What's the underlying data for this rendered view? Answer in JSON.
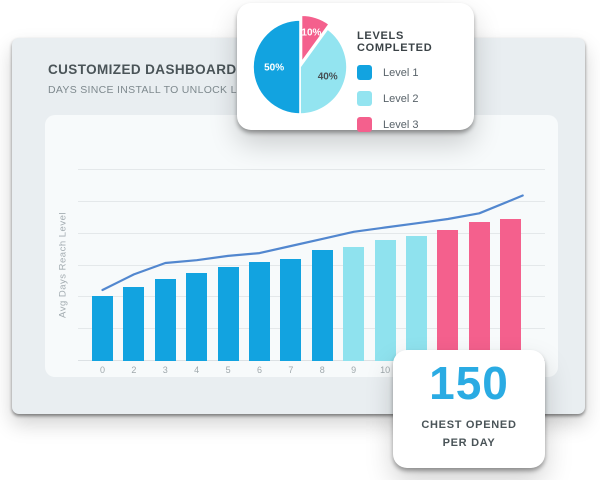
{
  "dashboard": {
    "title": "CUSTOMIZED DASHBOARD",
    "subtitle": "DAYS SINCE INSTALL TO UNLOCK LEVEL"
  },
  "pie_card": {
    "title": "LEVELS COMPLETED",
    "legend": [
      {
        "label": "Level 1",
        "color": "#12A3E0"
      },
      {
        "label": "Level 2",
        "color": "#93E4F0"
      },
      {
        "label": "Level 3",
        "color": "#F4608D"
      }
    ]
  },
  "metric_card": {
    "value": "150",
    "label_line1": "CHEST OPENED",
    "label_line2": "PER DAY",
    "value_color": "#2AABE3"
  },
  "colors": {
    "card_bg": "#E9EEF1",
    "panel_bg": "#F7FAFB",
    "gridline": "#E4E8EA",
    "trend_line": "#5287CF"
  },
  "chart_data": [
    {
      "type": "bar",
      "title": "DAYS SINCE INSTALL TO UNLOCK LEVEL",
      "xlabel": "",
      "ylabel": "Avg Days Reach Level",
      "grid": true,
      "ylim": [
        0,
        115
      ],
      "categories": [
        "0",
        "2",
        "3",
        "4",
        "5",
        "6",
        "7",
        "8",
        "9",
        "10",
        "",
        "",
        "",
        ""
      ],
      "values": [
        46,
        52,
        58,
        62,
        66,
        70,
        72,
        78,
        80,
        85,
        88,
        92,
        98,
        100
      ],
      "bar_group_index": [
        0,
        0,
        0,
        0,
        0,
        0,
        0,
        0,
        1,
        1,
        1,
        2,
        2,
        2
      ],
      "group_colors": [
        "#12A3E0",
        "#8FE2EE",
        "#F4608D"
      ],
      "group_names": [
        "Level 1",
        "Level 2",
        "Level 3"
      ],
      "line_overlay": {
        "name": "trend",
        "color": "#5287CF",
        "values": [
          50,
          61,
          69,
          71,
          74,
          76,
          81,
          86,
          91,
          94,
          97,
          100,
          104,
          113
        ],
        "extend": true
      }
    },
    {
      "type": "pie",
      "title": "LEVELS COMPLETED",
      "labels": [
        "Level 1",
        "Level 2",
        "Level 3"
      ],
      "values": [
        50,
        40,
        10
      ],
      "colors": [
        "#12A3E0",
        "#93E4F0",
        "#F4608D"
      ],
      "slice_labels": [
        "50%",
        "40%",
        "10%"
      ],
      "slice_label_colors": [
        "#ffffff",
        "#475054",
        "#ffffff"
      ],
      "legend_position": "right"
    }
  ]
}
